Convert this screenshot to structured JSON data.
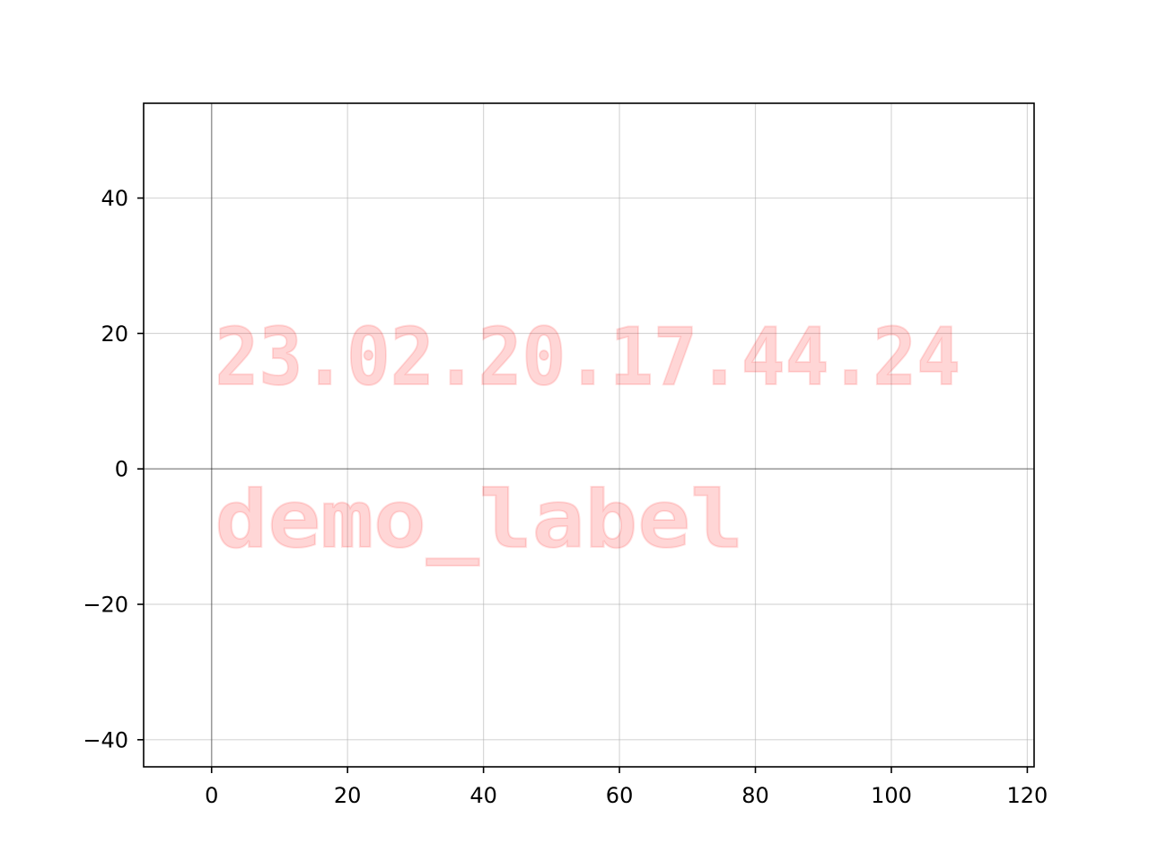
{
  "chart_data": {
    "type": "line",
    "title": "",
    "xlabel": "",
    "ylabel": "",
    "xlim": [
      -10,
      121
    ],
    "ylim": [
      -44,
      54
    ],
    "xticks": [
      0,
      20,
      40,
      60,
      80,
      100,
      120
    ],
    "yticks": [
      -40,
      -20,
      0,
      20,
      40
    ],
    "xtick_labels": [
      "0",
      "20",
      "40",
      "60",
      "80",
      "100",
      "120"
    ],
    "ytick_labels": [
      "−40",
      "−20",
      "0",
      "20",
      "40"
    ],
    "grid": true,
    "reference_lines": {
      "horizontal_at_y": 0,
      "vertical_at_x": 0
    },
    "series": [],
    "annotations": [
      {
        "text": "23.02.20.17.44.24",
        "x": 0.5,
        "y": 12.5,
        "color": "#ff0000"
      },
      {
        "text": "demo_label",
        "x": 0.5,
        "y": -11.5,
        "color": "#ff0000"
      }
    ]
  }
}
